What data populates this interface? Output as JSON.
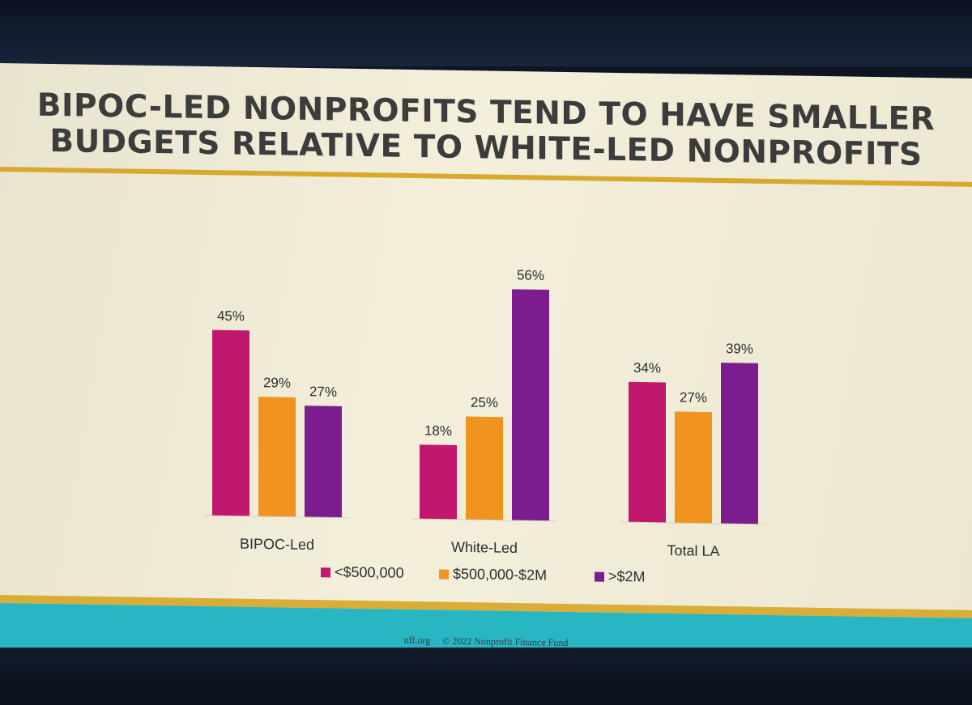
{
  "slide": {
    "title_lines": [
      "BIPOC-LED NONPROFITS TEND TO HAVE SMALLER",
      "BUDGETS RELATIVE TO WHITE-LED NONPROFITS"
    ],
    "footer": {
      "site": "nff.org",
      "copyright": "© 2022 Nonprofit Finance Fund"
    }
  },
  "chart_data": {
    "type": "bar",
    "title": "BIPOC-LED NONPROFITS TEND TO HAVE SMALLER BUDGETS RELATIVE TO WHITE-LED NONPROFITS",
    "categories": [
      "BIPOC-Led",
      "White-Led",
      "Total LA"
    ],
    "series": [
      {
        "name": "<$500,000",
        "values": [
          45,
          18,
          34
        ],
        "labels": [
          "45%",
          "18%",
          "34%"
        ],
        "color": "#c2176e"
      },
      {
        "name": "$500,000-$2M",
        "values": [
          29,
          25,
          27
        ],
        "labels": [
          "29%",
          "25%",
          "27%"
        ],
        "color": "#f0941f"
      },
      {
        "name": ">$2M",
        "values": [
          27,
          56,
          39
        ],
        "labels": [
          "27%",
          "56%",
          "39%"
        ],
        "color": "#7b1d8e"
      }
    ],
    "unit": "%",
    "legend_position": "bottom",
    "grid": false,
    "ylim": [
      0,
      60
    ],
    "xlabel": "",
    "ylabel": ""
  }
}
